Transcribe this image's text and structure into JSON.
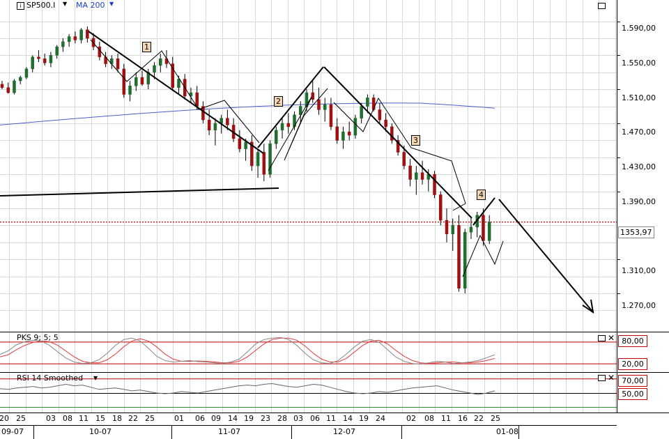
{
  "toolbar": {
    "symbol": "SP500.I",
    "indicator": "MA 200",
    "symbol_dropdown_icon": "triangle-down-icon",
    "indicator_dropdown_icon": "triangle-down-icon",
    "info_icon": "info-icon"
  },
  "price_panel": {
    "last_price_label": "1353,97",
    "wave_labels": [
      "1",
      "2",
      "3",
      "4"
    ],
    "colors": {
      "grid": "#d8d8d8",
      "ma": "#4a5fc8",
      "last_line": "#c00000",
      "bear": "#a01010",
      "bull": "#1f6e2e"
    }
  },
  "stoch_panel": {
    "title": "PKS 9; 5; 5",
    "levels": [
      "80,00",
      "20,00"
    ],
    "colors": {
      "k": "#888888",
      "d": "#e03a3a",
      "level": "#c00000"
    }
  },
  "rsi_panel": {
    "title": "RSI 14 Smoothed",
    "levels": [
      "70,00",
      "50,00"
    ],
    "colors": {
      "line": "#666666",
      "level70": "#c00000",
      "level50": "#2e8b2e"
    }
  },
  "x_axis": {
    "days": [
      "20",
      "25",
      "03",
      "08",
      "11",
      "15",
      "18",
      "22",
      "25",
      "01",
      "06",
      "09",
      "14",
      "19",
      "23",
      "28",
      "03",
      "06",
      "11",
      "14",
      "19",
      "24",
      "02",
      "08",
      "11",
      "16",
      "22",
      "25"
    ],
    "months": [
      "09-07",
      "10-07",
      "11-07",
      "12-07",
      "01-08"
    ]
  },
  "chart_data": {
    "type": "candlestick",
    "title": "",
    "series": [
      {
        "name": "SP500.I",
        "ohlc": [
          [
            1516,
            1520,
            1510,
            1512
          ],
          [
            1512,
            1518,
            1505,
            1506
          ],
          [
            1506,
            1522,
            1504,
            1520
          ],
          [
            1520,
            1526,
            1516,
            1524
          ],
          [
            1524,
            1536,
            1522,
            1534
          ],
          [
            1534,
            1550,
            1530,
            1548
          ],
          [
            1548,
            1556,
            1542,
            1546
          ],
          [
            1546,
            1552,
            1538,
            1541
          ],
          [
            1541,
            1554,
            1536,
            1550
          ],
          [
            1550,
            1562,
            1546,
            1560
          ],
          [
            1560,
            1570,
            1554,
            1566
          ],
          [
            1566,
            1575,
            1560,
            1572
          ],
          [
            1572,
            1578,
            1564,
            1568
          ],
          [
            1568,
            1582,
            1564,
            1580
          ],
          [
            1580,
            1584,
            1565,
            1570
          ],
          [
            1570,
            1576,
            1556,
            1560
          ],
          [
            1560,
            1566,
            1544,
            1548
          ],
          [
            1548,
            1554,
            1536,
            1540
          ],
          [
            1540,
            1550,
            1534,
            1546
          ],
          [
            1546,
            1552,
            1530,
            1534
          ],
          [
            1534,
            1540,
            1500,
            1504
          ],
          [
            1504,
            1520,
            1496,
            1514
          ],
          [
            1514,
            1530,
            1508,
            1524
          ],
          [
            1524,
            1532,
            1514,
            1516
          ],
          [
            1516,
            1534,
            1510,
            1530
          ],
          [
            1530,
            1542,
            1522,
            1538
          ],
          [
            1538,
            1552,
            1530,
            1546
          ],
          [
            1546,
            1556,
            1535,
            1540
          ],
          [
            1540,
            1548,
            1508,
            1512
          ],
          [
            1512,
            1526,
            1504,
            1522
          ],
          [
            1522,
            1528,
            1498,
            1502
          ],
          [
            1502,
            1512,
            1494,
            1506
          ],
          [
            1506,
            1514,
            1486,
            1490
          ],
          [
            1490,
            1496,
            1470,
            1474
          ],
          [
            1474,
            1486,
            1456,
            1462
          ],
          [
            1462,
            1476,
            1444,
            1470
          ],
          [
            1470,
            1480,
            1458,
            1476
          ],
          [
            1476,
            1486,
            1462,
            1468
          ],
          [
            1468,
            1476,
            1448,
            1452
          ],
          [
            1452,
            1462,
            1436,
            1440
          ],
          [
            1440,
            1452,
            1426,
            1448
          ],
          [
            1448,
            1456,
            1414,
            1420
          ],
          [
            1420,
            1440,
            1406,
            1436
          ],
          [
            1436,
            1446,
            1402,
            1410
          ],
          [
            1410,
            1450,
            1406,
            1446
          ],
          [
            1446,
            1466,
            1440,
            1462
          ],
          [
            1462,
            1476,
            1452,
            1470
          ],
          [
            1470,
            1482,
            1458,
            1466
          ],
          [
            1466,
            1484,
            1462,
            1480
          ],
          [
            1480,
            1496,
            1470,
            1490
          ],
          [
            1490,
            1510,
            1484,
            1506
          ],
          [
            1506,
            1520,
            1494,
            1498
          ],
          [
            1498,
            1512,
            1480,
            1486
          ],
          [
            1486,
            1500,
            1472,
            1492
          ],
          [
            1492,
            1500,
            1462,
            1466
          ],
          [
            1466,
            1476,
            1446,
            1450
          ],
          [
            1450,
            1466,
            1440,
            1460
          ],
          [
            1460,
            1472,
            1450,
            1456
          ],
          [
            1456,
            1480,
            1452,
            1476
          ],
          [
            1476,
            1494,
            1470,
            1490
          ],
          [
            1490,
            1504,
            1482,
            1500
          ],
          [
            1500,
            1504,
            1484,
            1486
          ],
          [
            1486,
            1494,
            1470,
            1474
          ],
          [
            1474,
            1482,
            1460,
            1466
          ],
          [
            1466,
            1470,
            1446,
            1450
          ],
          [
            1450,
            1456,
            1432,
            1436
          ],
          [
            1436,
            1444,
            1416,
            1420
          ],
          [
            1420,
            1428,
            1396,
            1404
          ],
          [
            1404,
            1420,
            1386,
            1412
          ],
          [
            1412,
            1426,
            1398,
            1404
          ],
          [
            1404,
            1416,
            1390,
            1410
          ],
          [
            1410,
            1414,
            1382,
            1386
          ],
          [
            1386,
            1390,
            1350,
            1356
          ],
          [
            1356,
            1370,
            1330,
            1340
          ],
          [
            1340,
            1358,
            1320,
            1350
          ],
          [
            1350,
            1362,
            1272,
            1276
          ],
          [
            1276,
            1346,
            1270,
            1342
          ],
          [
            1342,
            1360,
            1334,
            1348
          ],
          [
            1348,
            1366,
            1336,
            1362
          ],
          [
            1362,
            1370,
            1326,
            1332
          ],
          [
            1332,
            1362,
            1328,
            1354
          ]
        ]
      },
      {
        "name": "MA 200",
        "values_start": 1468,
        "values_end": 1492
      }
    ],
    "yticks": [
      1590,
      1550,
      1510,
      1470,
      1430,
      1390,
      1310,
      1270
    ],
    "ytick_labels": [
      "1.590,00",
      "1.550,00",
      "1.510,00",
      "1.470,00",
      "1.430,00",
      "1.390,00",
      "1.310,00",
      "1.270,00"
    ],
    "ylim": [
      1225,
      1615
    ],
    "last_value": 1353.97,
    "stochastic": {
      "k": [
        45,
        55,
        72,
        80,
        84,
        82,
        70,
        52,
        35,
        24,
        20,
        22,
        30,
        48,
        70,
        86,
        90,
        82,
        62,
        40,
        28,
        24,
        26,
        28,
        25,
        24,
        22,
        20,
        24,
        32,
        52,
        74,
        86,
        90,
        92,
        86,
        70,
        48,
        30,
        22,
        20,
        28,
        46,
        66,
        82,
        86,
        78,
        58,
        38,
        26,
        20,
        18,
        22,
        26,
        24,
        20,
        22,
        24,
        28,
        36,
        44
      ],
      "d": [
        38,
        44,
        58,
        70,
        78,
        82,
        80,
        70,
        54,
        38,
        26,
        22,
        22,
        30,
        46,
        66,
        82,
        88,
        82,
        66,
        46,
        32,
        26,
        26,
        27,
        26,
        24,
        22,
        22,
        26,
        38,
        56,
        74,
        86,
        90,
        90,
        84,
        68,
        48,
        32,
        24,
        24,
        34,
        52,
        70,
        82,
        84,
        74,
        56,
        40,
        28,
        22,
        20,
        22,
        24,
        24,
        22,
        22,
        24,
        28,
        34
      ],
      "levels": [
        80,
        20
      ]
    },
    "rsi": {
      "values": [
        56,
        55,
        57,
        58,
        59,
        57,
        58,
        60,
        62,
        60,
        61,
        58,
        55,
        56,
        57,
        55,
        53,
        54,
        52,
        50,
        49,
        50,
        52,
        51,
        50,
        52,
        54,
        56,
        58,
        60,
        61,
        60,
        62,
        63,
        61,
        59,
        58,
        60,
        62,
        61,
        58,
        55,
        52,
        50,
        49,
        50,
        52,
        51,
        53,
        55,
        57,
        58,
        59,
        60,
        57,
        54,
        52,
        50,
        48,
        50,
        53
      ],
      "levels": [
        70,
        50
      ]
    }
  }
}
